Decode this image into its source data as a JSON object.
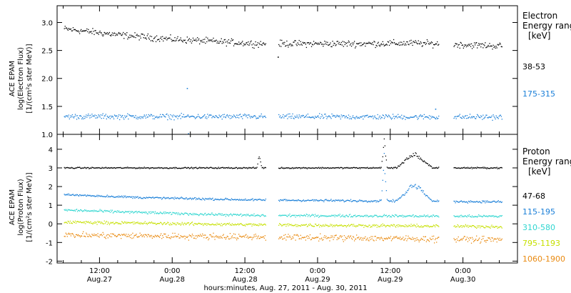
{
  "figure": {
    "xtick_labels": [
      {
        "time": "12:00",
        "date": "Aug.27",
        "hour": 12
      },
      {
        "time": "0:00",
        "date": "Aug.28",
        "hour": 24
      },
      {
        "time": "12:00",
        "date": "Aug.28",
        "hour": 36
      },
      {
        "time": "0:00",
        "date": "Aug.29",
        "hour": 48
      },
      {
        "time": "12:00",
        "date": "Aug.29",
        "hour": 60
      },
      {
        "time": "0:00",
        "date": "Aug.30",
        "hour": 72
      }
    ],
    "xlabel": "hours:minutes, Aug. 27, 2011 - Aug. 30, 2011"
  },
  "chart_data": [
    {
      "type": "scatter",
      "name": "electron",
      "ylabel_lines": [
        "ACE EPAM",
        "log(Electron Flux)",
        "[1/(cm²s ster MeV)]"
      ],
      "legend_title": [
        "Electron",
        "Energy range",
        "[keV]"
      ],
      "xlim_hours": [
        5,
        81
      ],
      "ylim": [
        1.0,
        3.3
      ],
      "yticks": [
        "1.0",
        "1.5",
        "2.0",
        "2.5",
        "3.0"
      ],
      "data_gaps_hours": [
        [
          39.5,
          41.5
        ],
        [
          68.0,
          70.5
        ]
      ],
      "data_end_hour": 78.5,
      "series": [
        {
          "name": "38-53",
          "color": "#000000",
          "level": [
            [
              5,
              2.9
            ],
            [
              15,
              2.78
            ],
            [
              24,
              2.7
            ],
            [
              38,
              2.62
            ],
            [
              41,
              2.62
            ],
            [
              55,
              2.62
            ],
            [
              64,
              2.63
            ],
            [
              78,
              2.58
            ]
          ],
          "scatter": 0.05,
          "extra_points": [
            [
              41.5,
              2.38
            ]
          ]
        },
        {
          "name": "175-315",
          "color": "#1a7fd8",
          "level": [
            [
              5,
              1.32
            ],
            [
              78,
              1.31
            ]
          ],
          "scatter": 0.04,
          "extra_points": [
            [
              26.5,
              1.82
            ],
            [
              26.7,
              1.01
            ],
            [
              67.5,
              1.45
            ]
          ]
        }
      ]
    },
    {
      "type": "scatter",
      "name": "proton",
      "ylabel_lines": [
        "ACE EPAM",
        "log(Proton Flux)",
        "[1/(cm²s ster MeV)]"
      ],
      "legend_title": [
        "Proton",
        "Energy range",
        "[keV]"
      ],
      "xlim_hours": [
        5,
        81
      ],
      "ylim": [
        -2.1,
        4.8
      ],
      "yticks": [
        "-2",
        "-1",
        "0",
        "1",
        "2",
        "3",
        "4"
      ],
      "data_gaps_hours": [
        [
          39.5,
          41.5
        ],
        [
          68.0,
          70.5
        ]
      ],
      "data_end_hour": 78.5,
      "series": [
        {
          "name": "47-68",
          "color": "#000000",
          "level": [
            [
              5,
              3.0
            ],
            [
              78,
              3.0
            ]
          ],
          "scatter": 0.03,
          "enhancements": [
            [
              38,
              38.8,
              3.9
            ],
            [
              58.5,
              59.5,
              4.6
            ],
            [
              61,
              67,
              3.9
            ]
          ]
        },
        {
          "name": "115-195",
          "color": "#1a7fd8",
          "level": [
            [
              5,
              1.58
            ],
            [
              20,
              1.4
            ],
            [
              38,
              1.28
            ],
            [
              78,
              1.18
            ]
          ],
          "scatter": 0.05,
          "enhancements": [
            [
              58.5,
              59.5,
              3.8
            ],
            [
              61,
              67,
              2.3
            ]
          ]
        },
        {
          "name": "310-580",
          "color": "#2fd6d0",
          "level": [
            [
              5,
              0.75
            ],
            [
              25,
              0.55
            ],
            [
              38,
              0.45
            ],
            [
              78,
              0.4
            ]
          ],
          "scatter": 0.06
        },
        {
          "name": "795-1193",
          "color": "#c6e000",
          "level": [
            [
              5,
              0.1
            ],
            [
              38,
              -0.05
            ],
            [
              78,
              -0.15
            ]
          ],
          "scatter": 0.07
        },
        {
          "name": "1060-1900",
          "color": "#e98a10",
          "level": [
            [
              5,
              -0.6
            ],
            [
              38,
              -0.7
            ],
            [
              78,
              -0.85
            ]
          ],
          "scatter": 0.14
        }
      ]
    }
  ]
}
